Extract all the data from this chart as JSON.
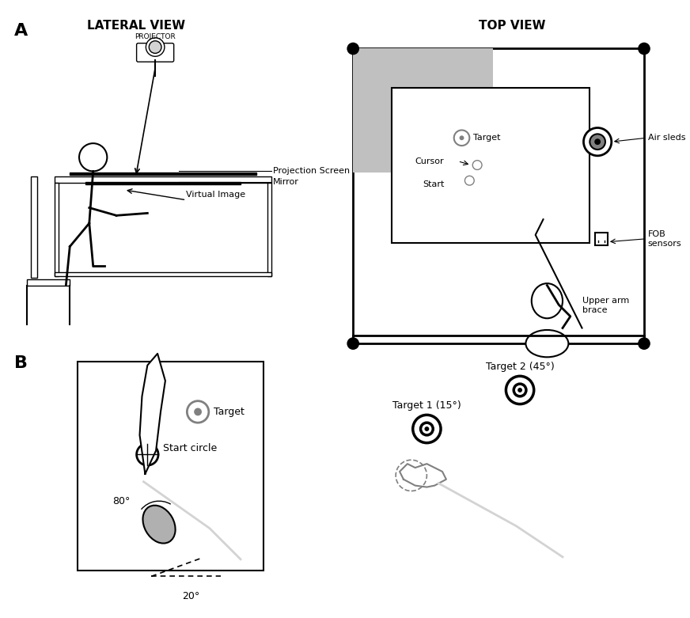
{
  "title_A": "LATERAL VIEW",
  "title_A2": "TOP VIEW",
  "label_B": "B",
  "label_A": "A",
  "bg_color": "#ffffff",
  "text_color": "#000000",
  "gray_color": "#cccccc",
  "dark_gray": "#888888",
  "light_gray": "#dddddd"
}
